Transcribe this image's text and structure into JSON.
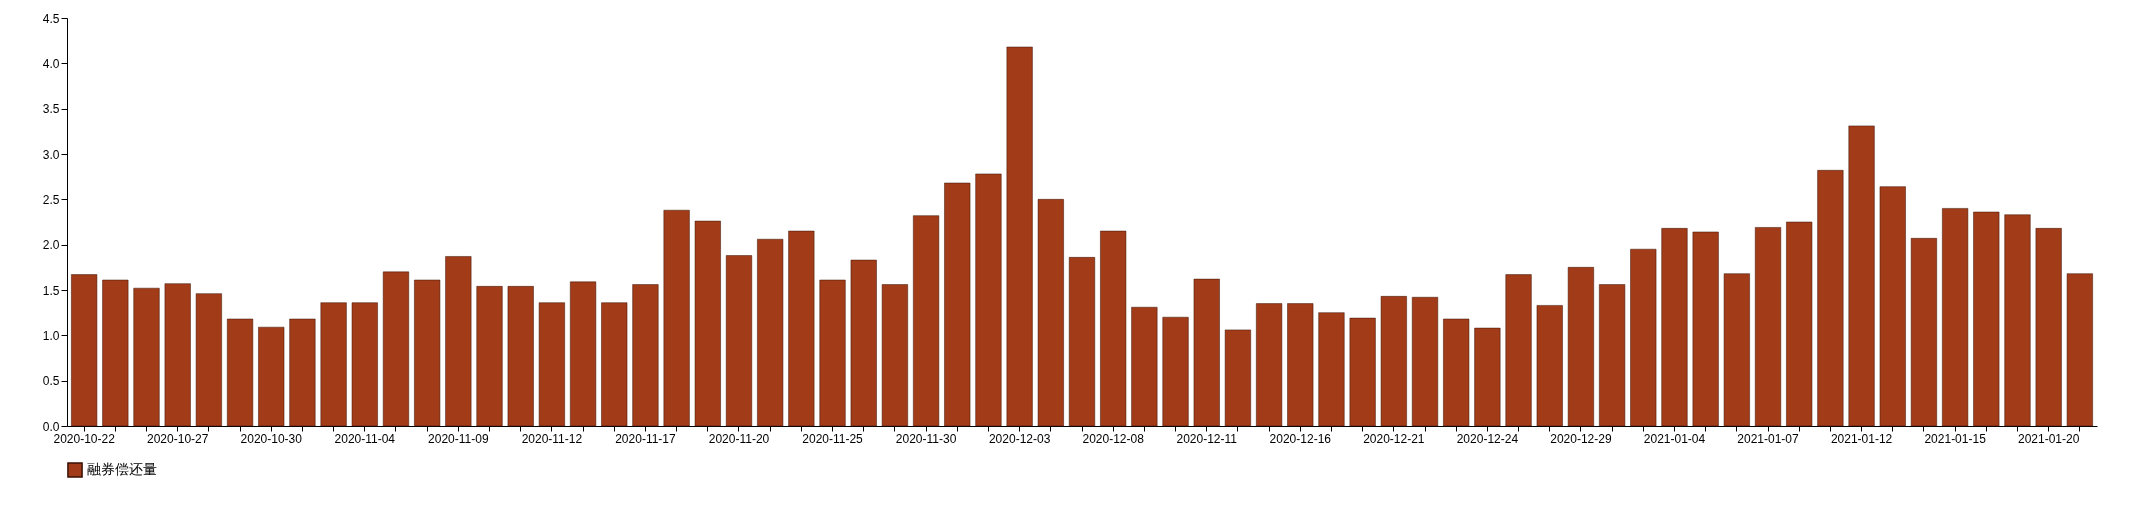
{
  "chart_data": {
    "type": "bar",
    "categories": [
      "2020-10-22",
      null,
      null,
      "2020-10-27",
      null,
      null,
      "2020-10-30",
      null,
      null,
      "2020-11-04",
      null,
      null,
      "2020-11-09",
      null,
      null,
      "2020-11-12",
      null,
      null,
      "2020-11-17",
      null,
      null,
      "2020-11-20",
      null,
      null,
      "2020-11-25",
      null,
      null,
      "2020-11-30",
      null,
      null,
      "2020-12-03",
      null,
      null,
      "2020-12-08",
      null,
      null,
      "2020-12-11",
      null,
      null,
      "2020-12-16",
      null,
      null,
      "2020-12-21",
      null,
      null,
      "2020-12-24",
      null,
      null,
      "2020-12-29",
      null,
      null,
      "2021-01-04",
      null,
      null,
      "2021-01-07",
      null,
      null,
      "2021-01-12",
      null,
      null,
      "2021-01-15",
      null,
      null,
      "2021-01-20",
      null
    ],
    "series": [
      {
        "name": "融券偿还量",
        "color": "#a23b18",
        "values": [
          1.67,
          1.61,
          1.52,
          1.57,
          1.46,
          1.18,
          1.09,
          1.18,
          1.36,
          1.36,
          1.7,
          1.61,
          1.87,
          1.54,
          1.54,
          1.36,
          1.59,
          1.36,
          1.56,
          2.38,
          2.26,
          1.88,
          2.06,
          2.15,
          1.61,
          1.83,
          1.56,
          2.32,
          2.68,
          2.78,
          4.18,
          2.5,
          1.86,
          2.15,
          1.31,
          1.2,
          1.62,
          1.06,
          1.35,
          1.35,
          1.25,
          1.19,
          1.43,
          1.42,
          1.18,
          1.08,
          1.67,
          1.33,
          1.75,
          1.56,
          1.95,
          2.18,
          2.14,
          1.68,
          2.19,
          2.25,
          2.82,
          3.31,
          2.64,
          2.07,
          2.4,
          2.36,
          2.33,
          2.18,
          1.68
        ]
      }
    ],
    "ylim": [
      0,
      4.5
    ],
    "yticks": [
      {
        "value": 0,
        "label": "0.0"
      },
      0.5,
      {
        "value": 1,
        "label": "1.0"
      },
      1.5,
      {
        "value": 2,
        "label": "2.0"
      },
      2.5,
      {
        "value": 3,
        "label": "3.0"
      },
      3.5,
      {
        "value": 4,
        "label": "4.0"
      },
      4.5
    ],
    "grid": false,
    "legend": "bottom"
  }
}
